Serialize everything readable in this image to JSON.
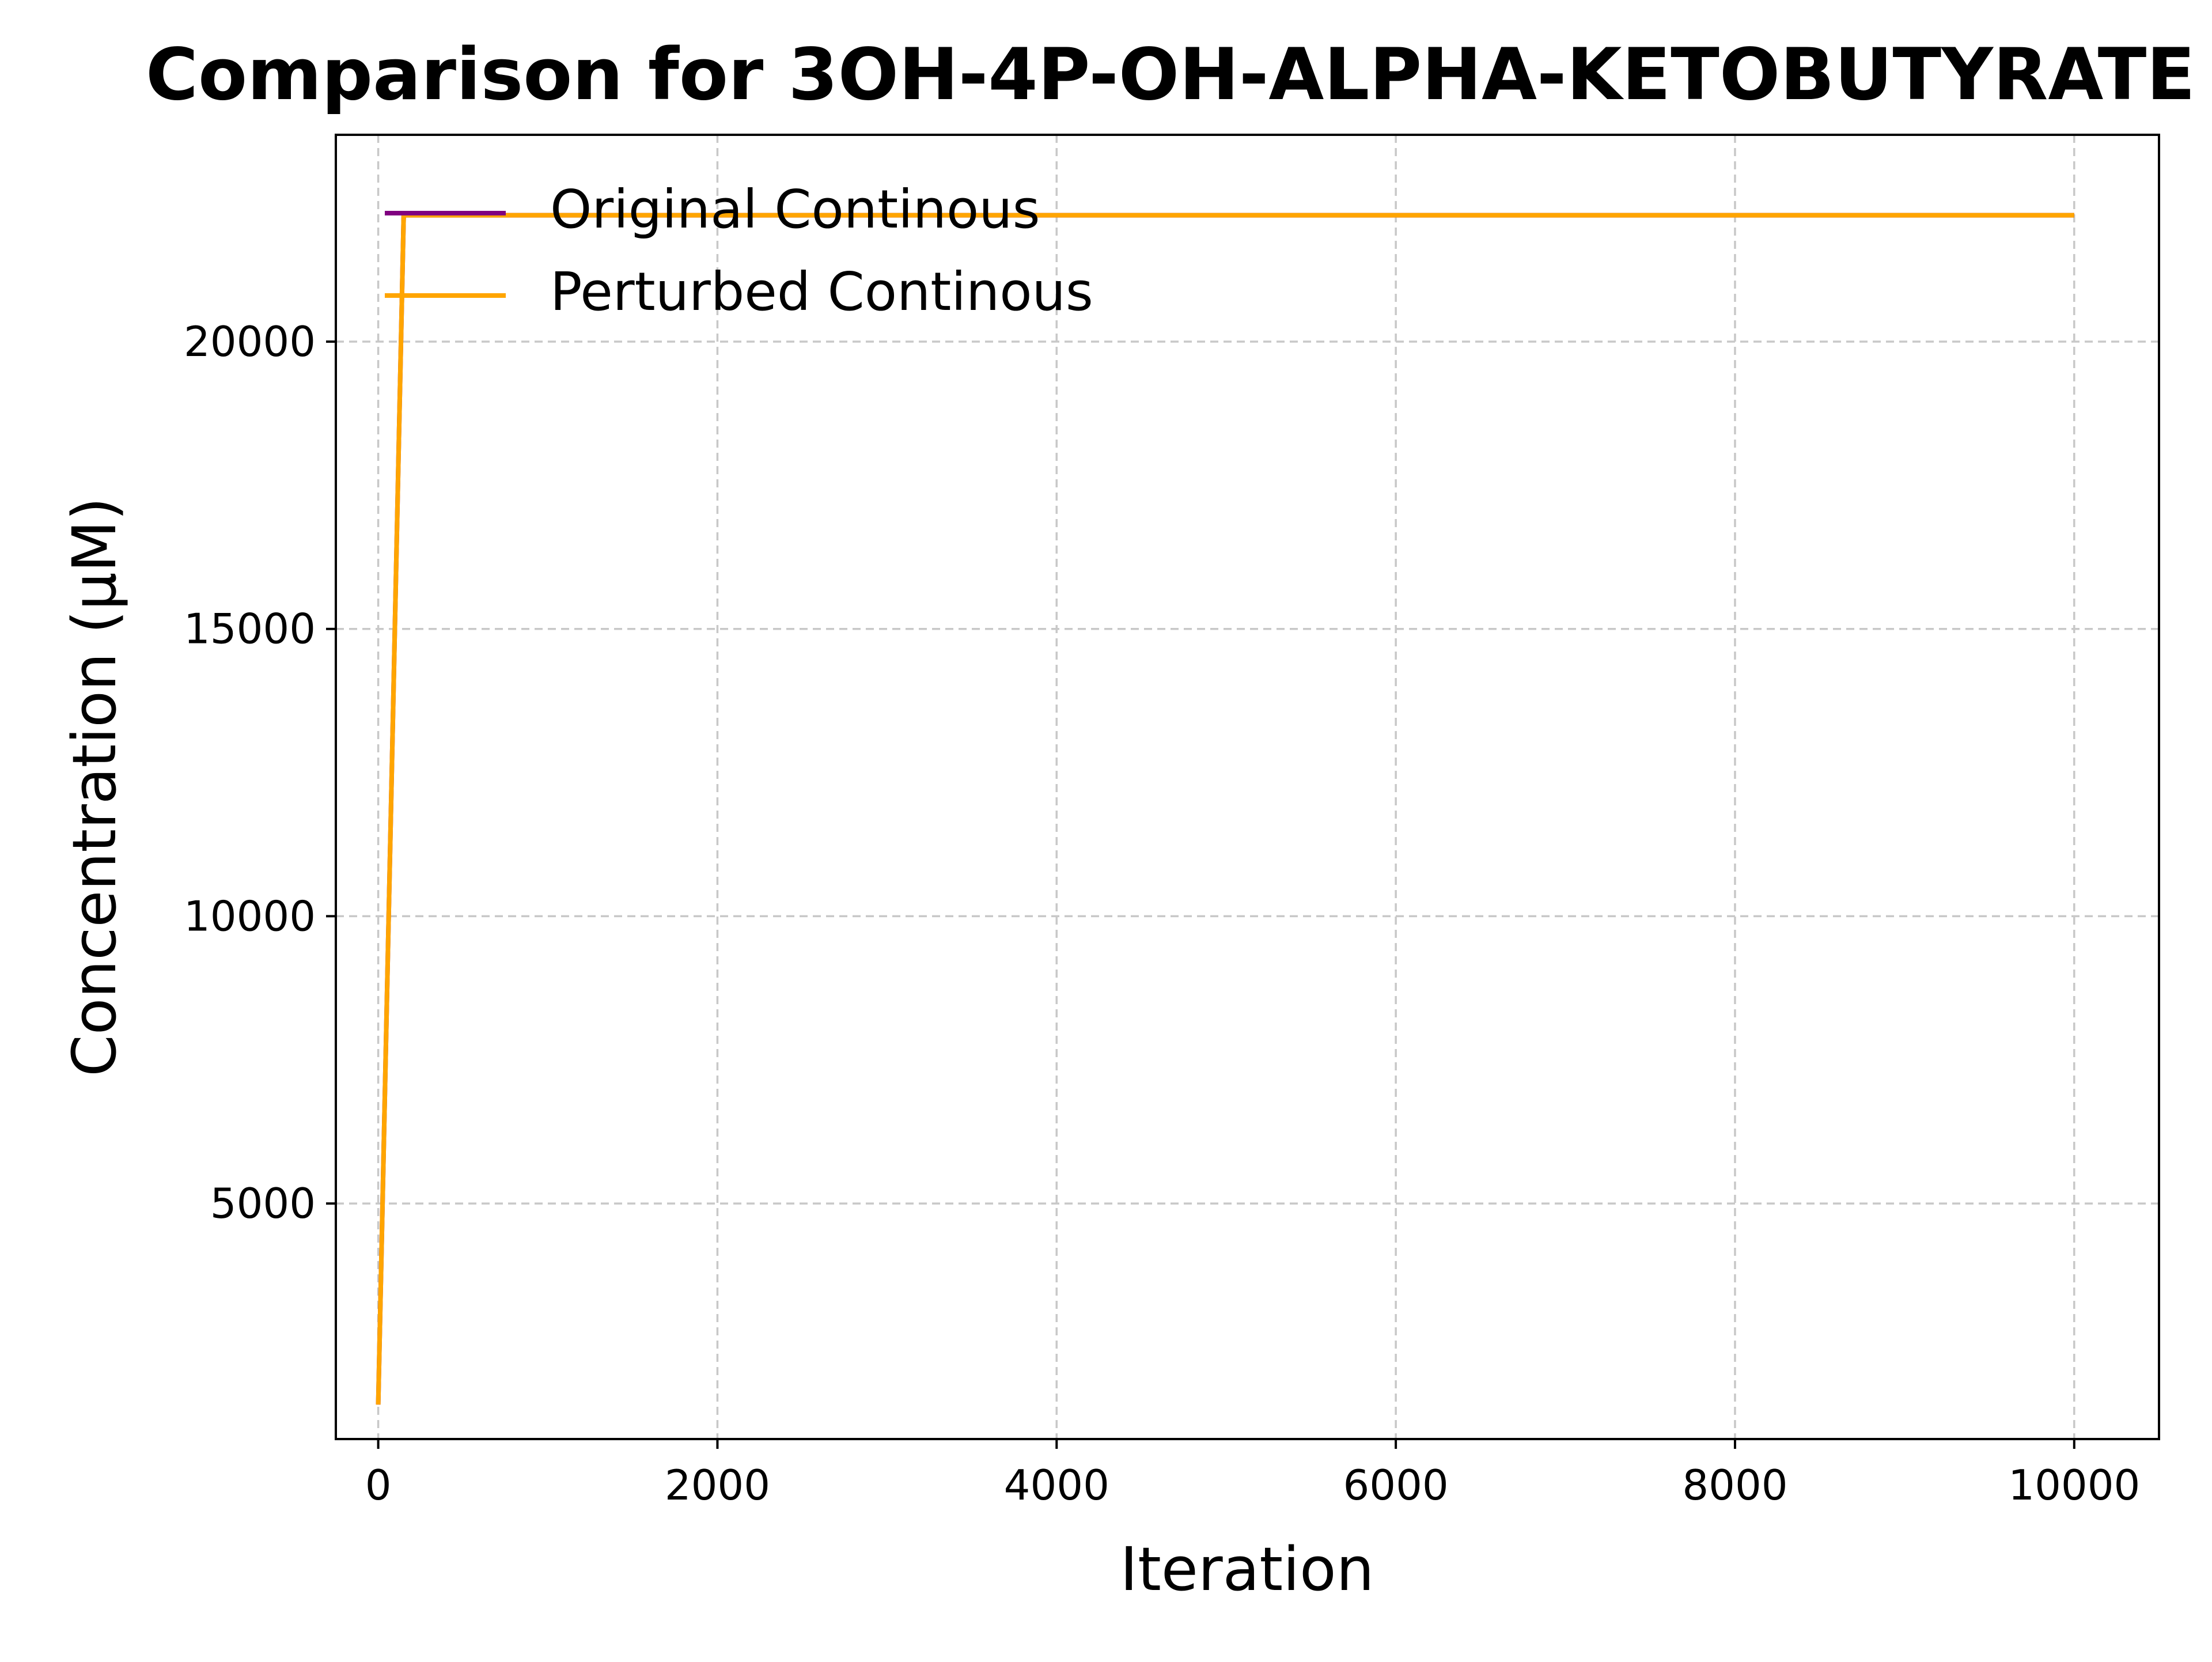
{
  "chart_data": {
    "type": "line",
    "title": "Comparison for 3OH-4P-OH-ALPHA-KETOBUTYRATE",
    "xlabel": "Iteration",
    "ylabel": "Concentration (μM)",
    "xlim": [
      -250,
      10500
    ],
    "ylim": [
      900,
      23600
    ],
    "xticks": [
      0,
      2000,
      4000,
      6000,
      8000,
      10000
    ],
    "xtick_labels": [
      "0",
      "2000",
      "4000",
      "6000",
      "8000",
      "10000"
    ],
    "yticks": [
      5000,
      10000,
      15000,
      20000
    ],
    "ytick_labels": [
      "5000",
      "10000",
      "15000",
      "20000"
    ],
    "grid": true,
    "legend_position": "top-left",
    "series": [
      {
        "name": "Original Continous",
        "color": "#800080",
        "x": [
          0,
          150,
          10000
        ],
        "y": [
          1500,
          22200,
          22200
        ]
      },
      {
        "name": "Perturbed Continous",
        "color": "#ffa500",
        "x": [
          0,
          150,
          10000
        ],
        "y": [
          1500,
          22200,
          22200
        ]
      }
    ]
  }
}
